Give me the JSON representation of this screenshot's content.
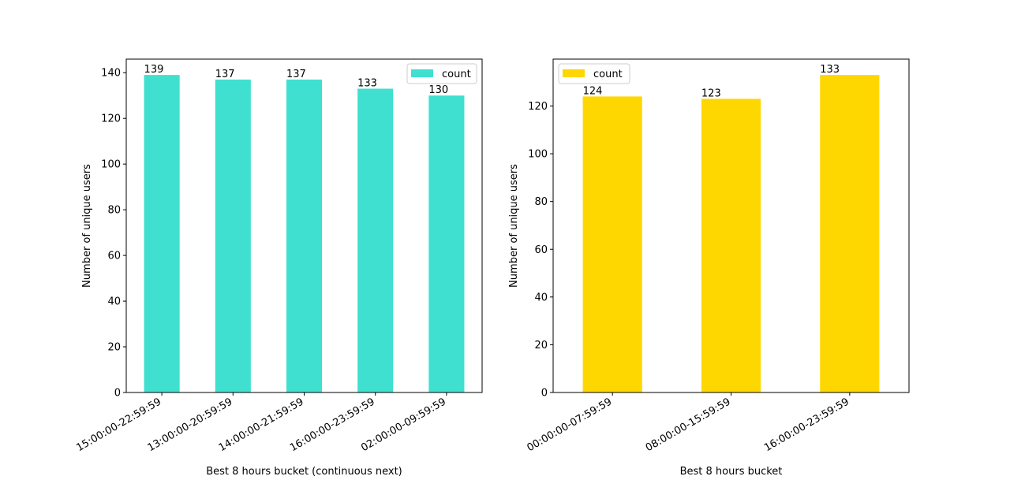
{
  "chart_data": [
    {
      "type": "bar",
      "categories": [
        "15:00:00-22:59:59",
        "13:00:00-20:59:59",
        "14:00:00-21:59:59",
        "16:00:00-23:59:59",
        "02:00:00-09:59:59"
      ],
      "values": [
        139,
        137,
        137,
        133,
        130
      ],
      "series": [
        {
          "name": "count",
          "values": [
            139,
            137,
            137,
            133,
            130
          ]
        }
      ],
      "data_labels": [
        "139",
        "137",
        "137",
        "133",
        "130"
      ],
      "color": "#40e0d0",
      "xlabel": "Best 8 hours bucket (continuous next)",
      "ylabel": "Number of unique users",
      "ylim": [
        0,
        145.95
      ],
      "yticks": [
        0,
        20,
        40,
        60,
        80,
        100,
        120,
        140
      ],
      "legend": {
        "label": "count",
        "position": "top-right"
      },
      "grid": false
    },
    {
      "type": "bar",
      "categories": [
        "00:00:00-07:59:59",
        "08:00:00-15:59:59",
        "16:00:00-23:59:59"
      ],
      "values": [
        124,
        123,
        133
      ],
      "series": [
        {
          "name": "count",
          "values": [
            124,
            123,
            133
          ]
        }
      ],
      "data_labels": [
        "124",
        "123",
        "133"
      ],
      "color": "#ffd700",
      "xlabel": "Best 8 hours bucket",
      "ylabel": "Number of unique users",
      "ylim": [
        0,
        139.65
      ],
      "yticks": [
        0,
        20,
        40,
        60,
        80,
        100,
        120
      ],
      "legend": {
        "label": "count",
        "position": "top-left"
      },
      "grid": false
    }
  ]
}
